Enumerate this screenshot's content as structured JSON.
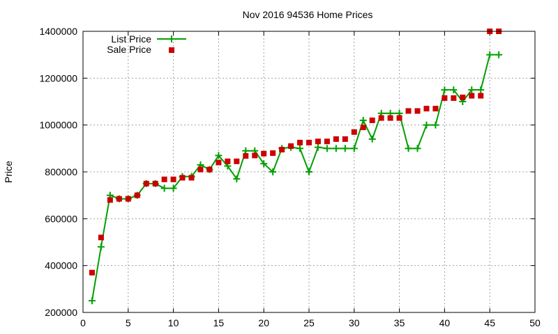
{
  "chart_data": {
    "type": "line",
    "title": "Nov 2016 94536 Home Prices",
    "xlabel": "",
    "ylabel": "Price",
    "xlim": [
      0,
      50
    ],
    "ylim": [
      200000,
      1400000
    ],
    "xticks": [
      0,
      5,
      10,
      15,
      20,
      25,
      30,
      35,
      40,
      45,
      50
    ],
    "yticks": [
      200000,
      400000,
      600000,
      800000,
      1000000,
      1200000,
      1400000
    ],
    "grid": true,
    "legend_position": "top-left",
    "series": [
      {
        "name": "List Price",
        "style": "line-points",
        "color": "#00a000",
        "x": [
          1,
          2,
          3,
          4,
          5,
          6,
          7,
          8,
          9,
          10,
          11,
          12,
          13,
          14,
          15,
          16,
          17,
          18,
          19,
          20,
          21,
          22,
          23,
          24,
          25,
          26,
          27,
          28,
          29,
          30,
          31,
          32,
          33,
          34,
          35,
          36,
          37,
          38,
          39,
          40,
          41,
          42,
          43,
          44,
          45,
          46
        ],
        "y": [
          250000,
          480000,
          700000,
          685000,
          685000,
          700000,
          750000,
          750000,
          730000,
          730000,
          780000,
          780000,
          830000,
          810000,
          870000,
          825000,
          770000,
          890000,
          890000,
          835000,
          800000,
          900000,
          905000,
          900000,
          800000,
          905000,
          900000,
          900000,
          900000,
          900000,
          1020000,
          940000,
          1050000,
          1050000,
          1050000,
          900000,
          900000,
          1000000,
          1000000,
          1150000,
          1150000,
          1100000,
          1150000,
          1150000,
          1300000,
          1300000
        ]
      },
      {
        "name": "Sale Price",
        "style": "points",
        "color": "#cc0000",
        "x": [
          1,
          2,
          3,
          4,
          5,
          6,
          7,
          8,
          9,
          10,
          11,
          12,
          13,
          14,
          15,
          16,
          17,
          18,
          19,
          20,
          21,
          22,
          23,
          24,
          25,
          26,
          27,
          28,
          29,
          30,
          31,
          32,
          33,
          34,
          35,
          36,
          37,
          38,
          39,
          40,
          41,
          42,
          43,
          44,
          45,
          46
        ],
        "y": [
          370000,
          520000,
          680000,
          685000,
          685000,
          700000,
          750000,
          750000,
          768000,
          768000,
          775000,
          775000,
          810000,
          810000,
          840000,
          845000,
          845000,
          868000,
          870000,
          878000,
          880000,
          895000,
          910000,
          925000,
          925000,
          930000,
          930000,
          940000,
          940000,
          970000,
          990000,
          1020000,
          1030000,
          1030000,
          1030000,
          1060000,
          1060000,
          1070000,
          1070000,
          1115000,
          1115000,
          1118000,
          1125000,
          1125000,
          1400000,
          1400000
        ]
      }
    ]
  }
}
